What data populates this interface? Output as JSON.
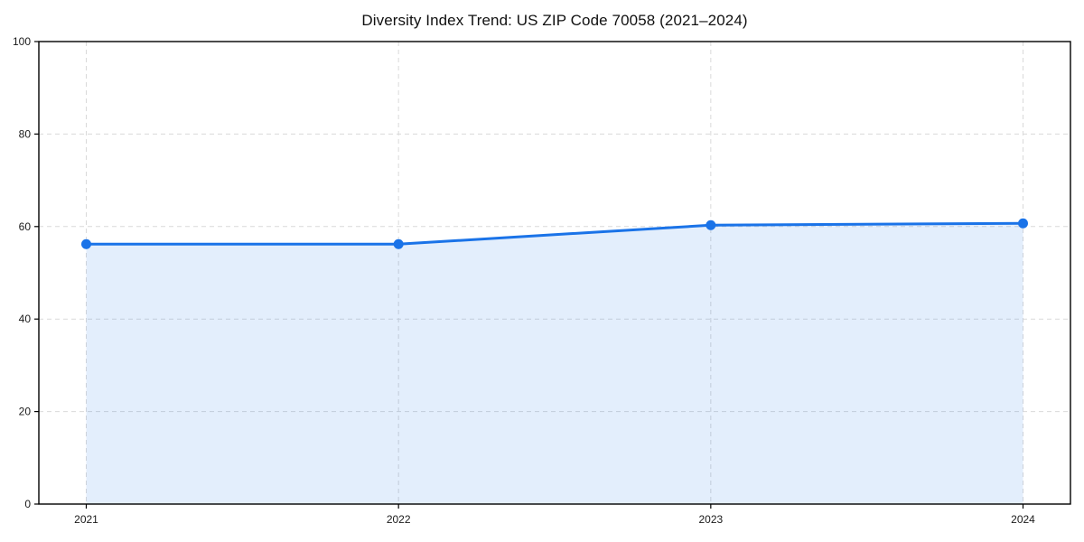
{
  "page": {
    "background": "#ffffff"
  },
  "chart_data": {
    "type": "area",
    "title": "Diversity Index Trend: US ZIP Code 70058 (2021–2024)",
    "categories": [
      "2021",
      "2022",
      "2023",
      "2024"
    ],
    "series": [
      {
        "name": "Diversity Index",
        "values": [
          56.2,
          56.2,
          60.3,
          60.7
        ]
      }
    ],
    "xlabel": "",
    "ylabel": "",
    "ylim": [
      0,
      100
    ],
    "yticks": [
      0,
      20,
      40,
      60,
      80,
      100
    ],
    "grid": "dashed, horizontal and vertical at ticks",
    "legend": "none",
    "marker": "circle",
    "colors": {
      "line": "#1a73e8",
      "marker": "#1a73e8",
      "fill": "rgba(26,115,232,0.12)",
      "grid": "#d9d9d9",
      "spine": "#000000",
      "tick_text": "#1a1a1a",
      "background": "#ffffff"
    }
  }
}
